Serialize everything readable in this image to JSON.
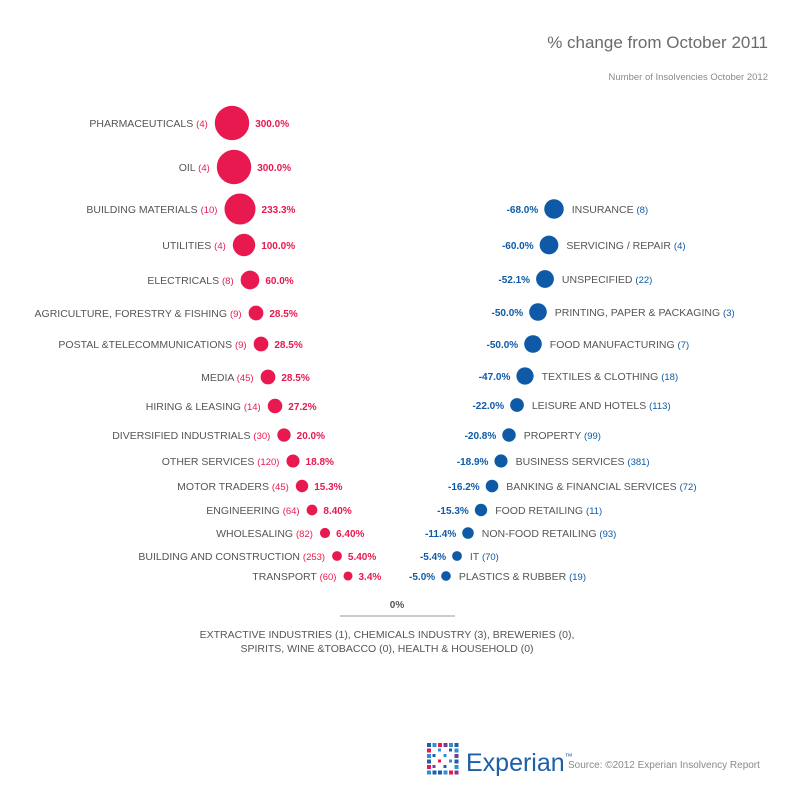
{
  "chart_data": {
    "type": "scatter",
    "title": "% change from October 2011",
    "subtitle": "Number of Insolvencies October 2012",
    "increases": [
      {
        "sector": "PHARMACEUTICALS",
        "count": 4,
        "change": 300.0,
        "label": "300.0%"
      },
      {
        "sector": "OIL",
        "count": 4,
        "change": 300.0,
        "label": "300.0%"
      },
      {
        "sector": "BUILDING MATERIALS",
        "count": 10,
        "change": 233.3,
        "label": "233.3%"
      },
      {
        "sector": "UTILITIES",
        "count": 4,
        "change": 100.0,
        "label": "100.0%"
      },
      {
        "sector": "ELECTRICALS",
        "count": 8,
        "change": 60.0,
        "label": "60.0%"
      },
      {
        "sector": "AGRICULTURE, FORESTRY & FISHING",
        "count": 9,
        "change": 28.5,
        "label": "28.5%"
      },
      {
        "sector": "POSTAL &TELECOMMUNICATIONS",
        "count": 9,
        "change": 28.5,
        "label": "28.5%"
      },
      {
        "sector": "MEDIA",
        "count": 45,
        "change": 28.5,
        "label": "28.5%"
      },
      {
        "sector": "HIRING & LEASING",
        "count": 14,
        "change": 27.2,
        "label": "27.2%"
      },
      {
        "sector": "DIVERSIFIED INDUSTRIALS",
        "count": 30,
        "change": 20.0,
        "label": "20.0%"
      },
      {
        "sector": "OTHER SERVICES",
        "count": 120,
        "change": 18.8,
        "label": "18.8%"
      },
      {
        "sector": "MOTOR TRADERS",
        "count": 45,
        "change": 15.3,
        "label": "15.3%"
      },
      {
        "sector": "ENGINEERING",
        "count": 64,
        "change": 8.4,
        "label": "8.40%"
      },
      {
        "sector": "WHOLESALING",
        "count": 82,
        "change": 6.4,
        "label": "6.40%"
      },
      {
        "sector": "BUILDING AND CONSTRUCTION",
        "count": 253,
        "change": 5.4,
        "label": "5.40%"
      },
      {
        "sector": "TRANSPORT",
        "count": 60,
        "change": 3.4,
        "label": "3.4%"
      }
    ],
    "decreases": [
      {
        "sector": "INSURANCE",
        "count": 8,
        "change": -68.0,
        "label": "-68.0%"
      },
      {
        "sector": "SERVICING / REPAIR",
        "count": 4,
        "change": -60.0,
        "label": "-60.0%"
      },
      {
        "sector": "UNSPECIFIED",
        "count": 22,
        "change": -52.1,
        "label": "-52.1%"
      },
      {
        "sector": "PRINTING, PAPER & PACKAGING",
        "count": 3,
        "change": -50.0,
        "label": "-50.0%"
      },
      {
        "sector": "FOOD MANUFACTURING",
        "count": 7,
        "change": -50.0,
        "label": "-50.0%"
      },
      {
        "sector": "TEXTILES & CLOTHING",
        "count": 18,
        "change": -47.0,
        "label": "-47.0%"
      },
      {
        "sector": "LEISURE AND HOTELS",
        "count": 113,
        "change": -22.0,
        "label": "-22.0%"
      },
      {
        "sector": "PROPERTY",
        "count": 99,
        "change": -20.8,
        "label": "-20.8%"
      },
      {
        "sector": "BUSINESS SERVICES",
        "count": 381,
        "change": -18.9,
        "label": "-18.9%"
      },
      {
        "sector": "BANKING & FINANCIAL SERVICES",
        "count": 72,
        "change": -16.2,
        "label": "-16.2%"
      },
      {
        "sector": "FOOD RETAILING",
        "count": 11,
        "change": -15.3,
        "label": "-15.3%"
      },
      {
        "sector": "NON-FOOD RETAILING",
        "count": 93,
        "change": -11.4,
        "label": "-11.4%"
      },
      {
        "sector": "IT",
        "count": 70,
        "change": -5.4,
        "label": "-5.4%"
      },
      {
        "sector": "PLASTICS & RUBBER",
        "count": 19,
        "change": -5.0,
        "label": "-5.0%"
      }
    ],
    "zero_label": "0%",
    "zero_change": {
      "line1": "EXTRACTIVE  INDUSTRIES (1), CHEMICALS INDUSTRY (3), BREWERIES (0),",
      "line2": "SPIRITS, WINE &TOBACCO (0), HEALTH & HOUSEHOLD (0)"
    },
    "colors": {
      "increase": "#e8194f",
      "decrease": "#0e5aa7"
    }
  },
  "brand": {
    "name": "Experian",
    "tm": "™",
    "source": "Source: ©2012 Experian Insolvency Report"
  }
}
